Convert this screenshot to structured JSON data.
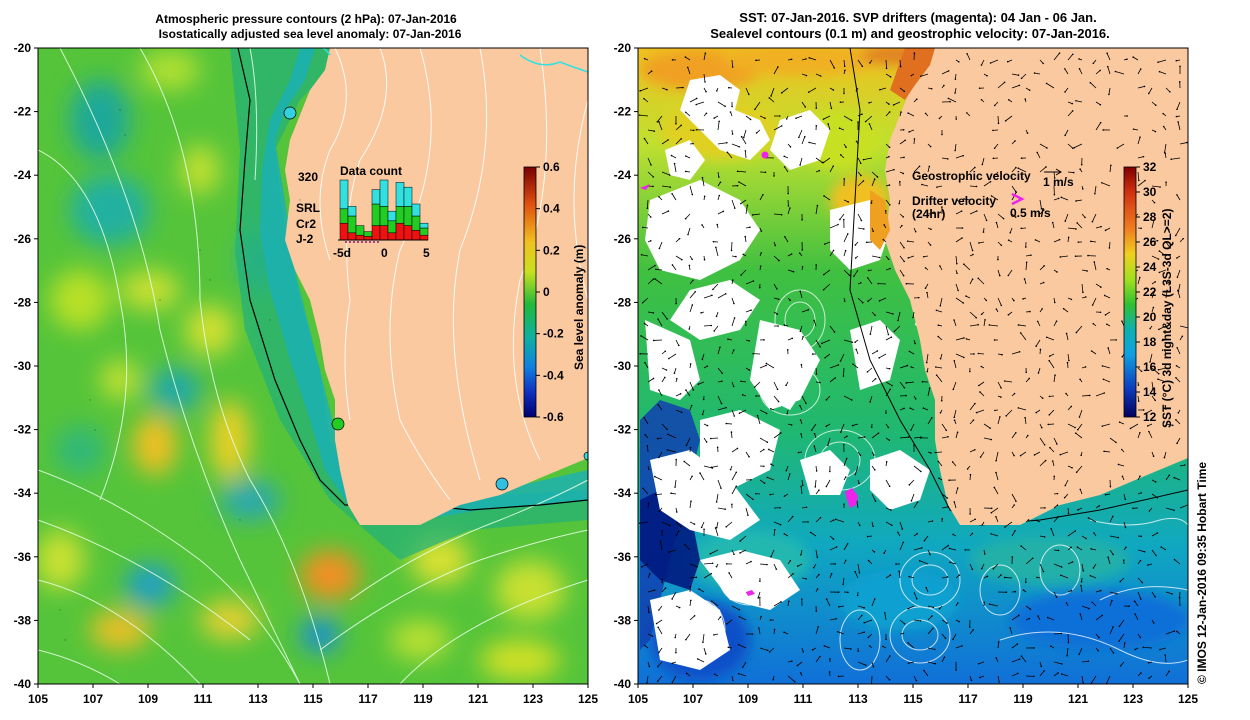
{
  "left_panel": {
    "title_line1": "Atmospheric pressure contours (2 hPa): 07-Jan-2016",
    "title_line2": "Isostatically adjusted sea level anomaly: 07-Jan-2016",
    "inset": {
      "title": "Data count",
      "max_label": "320",
      "legend": [
        "SRL",
        "Cr2",
        "J-2"
      ],
      "legend_colors": [
        "#33e0e0",
        "#22cc22",
        "#ee1111"
      ],
      "xticks": [
        "-5d",
        "0",
        "5"
      ],
      "bars": [
        {
          "srl": 120,
          "cr2": 60,
          "j2": 70
        },
        {
          "srl": 40,
          "cr2": 70,
          "j2": 30
        },
        {
          "srl": 0,
          "cr2": 40,
          "j2": 20
        },
        {
          "srl": 0,
          "cr2": 20,
          "j2": 15
        },
        {
          "srl": 60,
          "cr2": 90,
          "j2": 60
        },
        {
          "srl": 110,
          "cr2": 80,
          "j2": 60
        },
        {
          "srl": 40,
          "cr2": 50,
          "j2": 30
        },
        {
          "srl": 100,
          "cr2": 70,
          "j2": 70
        },
        {
          "srl": 80,
          "cr2": 80,
          "j2": 60
        },
        {
          "srl": 50,
          "cr2": 60,
          "j2": 40
        },
        {
          "srl": 20,
          "cr2": 30,
          "j2": 20
        }
      ]
    },
    "colorbar": {
      "label": "Sea level anomaly (m)",
      "ticks": [
        "0.6",
        "0.4",
        "0.2",
        "0",
        "-0.2",
        "-0.4",
        "-0.6"
      ]
    }
  },
  "right_panel": {
    "title_line1": "SST: 07-Jan-2016. SVP drifters (magenta): 04 Jan - 06 Jan.",
    "title_line2": "Sealevel contours (0.1 m) and geostrophic velocity: 07-Jan-2016.",
    "legend": {
      "geo_label": "Geostrophic velocity",
      "geo_scale": "1 m/s",
      "drifter_label": "Drifter velocity",
      "drifter_sub": "(24hr)",
      "drifter_scale": "0.5 m/s"
    },
    "colorbar": {
      "label": "SST (°C) 3d night&day (L3S-3d QL>=2)",
      "ticks": [
        "32",
        "30",
        "28",
        "26",
        "24",
        "22",
        "20",
        "18",
        "16",
        "14",
        "12"
      ]
    }
  },
  "axes": {
    "y_ticks": [
      "-20",
      "-22",
      "-24",
      "-26",
      "-28",
      "-30",
      "-32",
      "-34",
      "-36",
      "-38",
      "-40"
    ],
    "x_ticks": [
      "105",
      "107",
      "109",
      "111",
      "113",
      "115",
      "117",
      "119",
      "121",
      "123",
      "125"
    ]
  },
  "colors": {
    "land": "#fac9a0",
    "cyan": "#33e0e0"
  },
  "credit": "© IMOS 12-Jan-2016 09:35 Hobart Time"
}
